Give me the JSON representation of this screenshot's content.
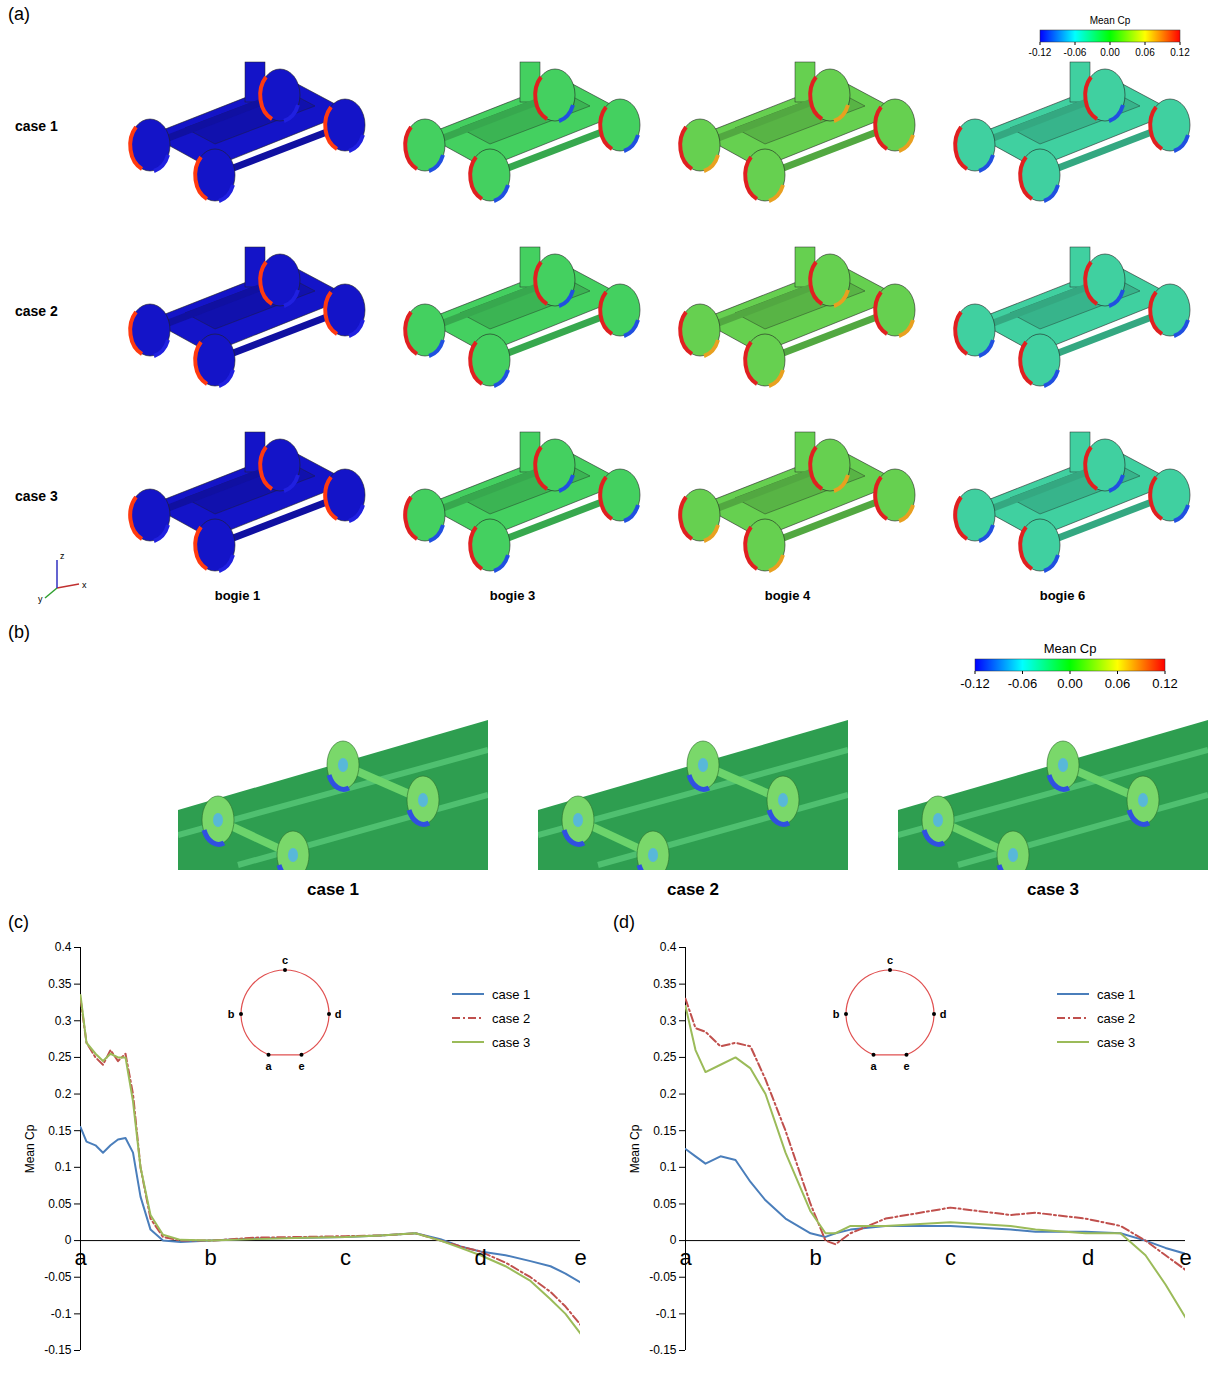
{
  "figure": {
    "panel_a": {
      "panel_label": "(a)",
      "row_labels": [
        "case 1",
        "case 2",
        "case 3"
      ],
      "column_labels": [
        "bogie 1",
        "bogie 3",
        "bogie 4",
        "bogie 6"
      ],
      "axes_triad": [
        "x",
        "y",
        "z"
      ],
      "colorbar": {
        "title": "Mean Cp",
        "range": [
          -0.12,
          0.12
        ],
        "ticks": [
          -0.12,
          -0.06,
          {
            "value": 0,
            "label": "0.00"
          },
          0.06,
          0.12
        ]
      }
    },
    "panel_b": {
      "panel_label": "(b)",
      "image_labels": [
        "case 1",
        "case 2",
        "case 3"
      ],
      "colorbar": {
        "title": "Mean Cp",
        "range": [
          -0.12,
          0.12
        ],
        "ticks": [
          -0.12,
          -0.06,
          {
            "value": 0,
            "label": "0.00"
          },
          0.06,
          0.12
        ]
      }
    }
  },
  "chart_data": [
    {
      "panel_label": "(c)",
      "type": "line",
      "y_label": "Mean Cp",
      "x": [
        0,
        0.012,
        0.03,
        0.045,
        0.06,
        0.075,
        0.09,
        0.105,
        0.12,
        0.14,
        0.165,
        0.2,
        0.26,
        0.35,
        0.45,
        0.53,
        0.6,
        0.67,
        0.72,
        0.76,
        0.8,
        0.85,
        0.9,
        0.94,
        0.97,
        1.0
      ],
      "xlim": [
        0,
        1
      ],
      "xticks": [
        {
          "value": 0,
          "label": "a"
        },
        {
          "value": 0.26,
          "label": "b"
        },
        {
          "value": 0.53,
          "label": "c"
        },
        {
          "value": 0.8,
          "label": "d"
        },
        {
          "value": 1,
          "label": "e"
        }
      ],
      "ylim": [
        -0.15,
        0.4
      ],
      "yticks": [
        -0.15,
        -0.1,
        -0.05,
        0,
        0.05,
        0.1,
        0.15,
        0.2,
        0.25,
        0.3,
        0.35,
        0.4
      ],
      "legend": "top-right",
      "inset_labels": [
        "a",
        "b",
        "c",
        "d",
        "e"
      ],
      "series": [
        {
          "name": "case 1",
          "color": "#4a7ebb",
          "line_style": "solid",
          "values": [
            0.155,
            0.135,
            0.13,
            0.12,
            0.13,
            0.138,
            0.14,
            0.12,
            0.06,
            0.015,
            0.0,
            -0.002,
            0.0,
            0.003,
            0.004,
            0.005,
            0.007,
            0.01,
            0.002,
            -0.008,
            -0.015,
            -0.02,
            -0.028,
            -0.035,
            -0.045,
            -0.057
          ]
        },
        {
          "name": "case 2",
          "color": "#c0504d",
          "line_style": "dashdot",
          "values": [
            0.33,
            0.27,
            0.25,
            0.24,
            0.26,
            0.245,
            0.255,
            0.2,
            0.1,
            0.03,
            0.005,
            0.0,
            0.0,
            0.004,
            0.005,
            0.006,
            0.007,
            0.01,
            0.0,
            -0.008,
            -0.015,
            -0.03,
            -0.05,
            -0.07,
            -0.09,
            -0.115
          ]
        },
        {
          "name": "case 3",
          "color": "#9bbb59",
          "line_style": "solid",
          "values": [
            0.335,
            0.27,
            0.255,
            0.245,
            0.255,
            0.25,
            0.25,
            0.19,
            0.1,
            0.035,
            0.008,
            0.001,
            0.0,
            0.002,
            0.004,
            0.005,
            0.007,
            0.01,
            0.0,
            -0.01,
            -0.02,
            -0.035,
            -0.055,
            -0.08,
            -0.1,
            -0.127
          ]
        }
      ]
    },
    {
      "panel_label": "(d)",
      "type": "line",
      "y_label": "Mean Cp",
      "x": [
        0,
        0.02,
        0.04,
        0.07,
        0.1,
        0.13,
        0.16,
        0.2,
        0.25,
        0.28,
        0.3,
        0.33,
        0.4,
        0.53,
        0.65,
        0.7,
        0.8,
        0.87,
        0.92,
        0.96,
        1.0
      ],
      "xlim": [
        0,
        1
      ],
      "xticks": [
        {
          "value": 0,
          "label": "a"
        },
        {
          "value": 0.26,
          "label": "b"
        },
        {
          "value": 0.53,
          "label": "c"
        },
        {
          "value": 0.805,
          "label": "d"
        },
        {
          "value": 1,
          "label": "e"
        }
      ],
      "ylim": [
        -0.15,
        0.4
      ],
      "yticks": [
        -0.15,
        -0.1,
        -0.05,
        0,
        0.05,
        0.1,
        0.15,
        0.2,
        0.25,
        0.3,
        0.35,
        0.4
      ],
      "legend": "top-right",
      "inset_labels": [
        "a",
        "b",
        "c",
        "d",
        "e"
      ],
      "series": [
        {
          "name": "case 1",
          "color": "#4a7ebb",
          "line_style": "solid",
          "values": [
            0.125,
            0.115,
            0.105,
            0.115,
            0.11,
            0.08,
            0.055,
            0.03,
            0.01,
            0.005,
            0.01,
            0.015,
            0.02,
            0.02,
            0.015,
            0.012,
            0.012,
            0.01,
            0.0,
            -0.01,
            -0.018
          ]
        },
        {
          "name": "case 2",
          "color": "#c0504d",
          "line_style": "dashdot",
          "values": [
            0.33,
            0.29,
            0.285,
            0.265,
            0.27,
            0.265,
            0.22,
            0.15,
            0.05,
            0.0,
            -0.005,
            0.01,
            0.03,
            0.045,
            0.035,
            0.038,
            0.03,
            0.02,
            0.0,
            -0.02,
            -0.04
          ]
        },
        {
          "name": "case 3",
          "color": "#9bbb59",
          "line_style": "solid",
          "values": [
            0.32,
            0.26,
            0.23,
            0.24,
            0.25,
            0.235,
            0.2,
            0.12,
            0.04,
            0.01,
            0.01,
            0.02,
            0.02,
            0.025,
            0.02,
            0.015,
            0.01,
            0.01,
            -0.02,
            -0.06,
            -0.105
          ]
        }
      ]
    }
  ]
}
